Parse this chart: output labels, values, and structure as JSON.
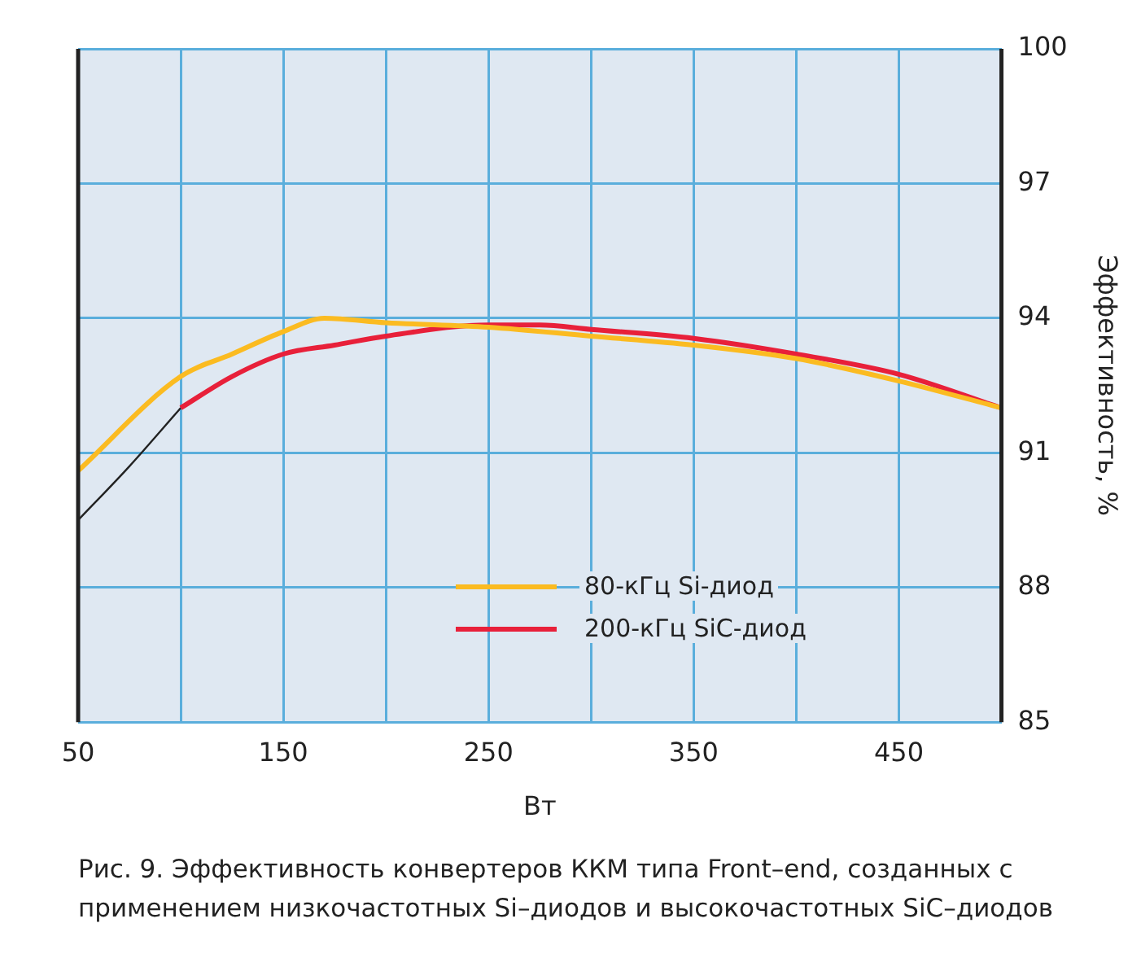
{
  "chart_data": {
    "type": "line",
    "xlabel": "Вт",
    "ylabel": "Эффективность, %",
    "xlim": [
      50,
      500
    ],
    "xticks": [
      50,
      {
        "value": 100,
        "label": null
      },
      150,
      {
        "value": 200,
        "label": null
      },
      250,
      {
        "value": 300,
        "label": null
      },
      350,
      {
        "value": 400,
        "label": null
      },
      450,
      {
        "value": 500,
        "label": null
      }
    ],
    "ylim": [
      85,
      100
    ],
    "yticks": [
      85,
      88,
      91,
      94,
      97,
      100
    ],
    "grid": true,
    "legend": "bottom",
    "marker": "none",
    "line_style": "solid",
    "series": [
      {
        "name": "80-кГц Si-диод",
        "color": "#fbbb21",
        "x": [
          50,
          100,
          125,
          150,
          170,
          200,
          250,
          300,
          350,
          400,
          450,
          500
        ],
        "values": [
          90.6,
          92.7,
          93.2,
          93.7,
          94.0,
          93.9,
          93.8,
          93.6,
          93.4,
          93.1,
          92.6,
          92.0
        ]
      },
      {
        "name": "200-кГц SiC-диод",
        "color": "#e8203a",
        "x": [
          100,
          125,
          150,
          175,
          200,
          250,
          275,
          300,
          350,
          400,
          450,
          500
        ],
        "values": [
          92.0,
          92.7,
          93.2,
          93.4,
          93.6,
          93.85,
          93.85,
          93.75,
          93.55,
          93.2,
          92.75,
          92.0
        ]
      },
      {
        "color": "#222222",
        "x": [
          50,
          75,
          100
        ],
        "values": [
          89.5,
          90.7,
          92.0
        ]
      }
    ],
    "annotations": [
      "Рис. 9. Эффективность конвертеров ККМ типа Front–end, созданных с применением низкочастотных Si–диодов и высокочастотных SiC–диодов"
    ]
  }
}
